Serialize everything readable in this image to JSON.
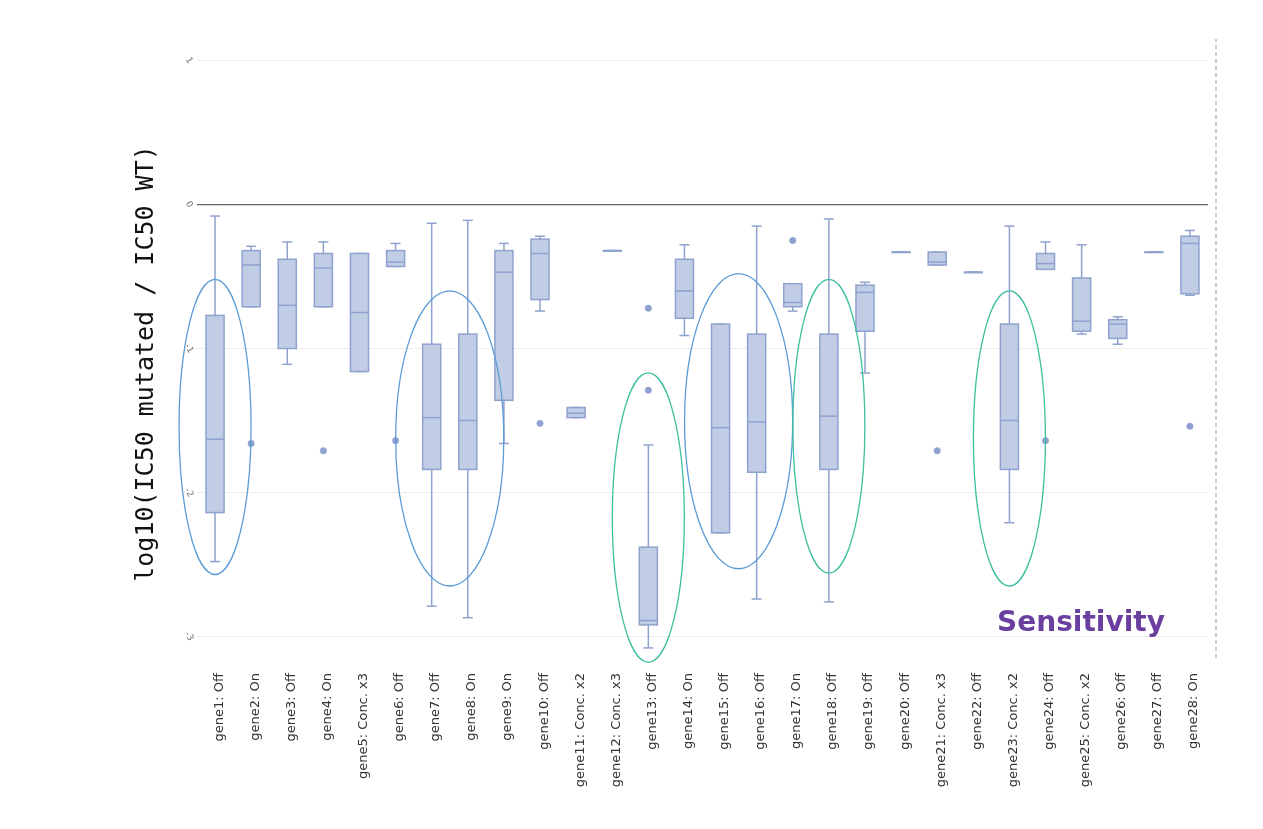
{
  "chart_data": {
    "type": "box",
    "ylabel": "log10(IC50 mutated / IC50 WT)",
    "categories": [
      "gene1: Off",
      "gene2: On",
      "gene3: Off",
      "gene4: On",
      "gene5: Conc. x3",
      "gene6: Off",
      "gene7: Off",
      "gene8: On",
      "gene9: On",
      "gene10: Off",
      "gene11: Conc. x2",
      "gene12: Conc. x3",
      "gene13: Off",
      "gene14: On",
      "gene15: Off",
      "gene16: Off",
      "gene17: On",
      "gene18: Off",
      "gene19: Off",
      "gene20: Off",
      "gene21: Conc. x3",
      "gene22: Off",
      "gene23: Conc. x2",
      "gene24: Off",
      "gene25: Conc. x2",
      "gene26: Off",
      "gene27: Off",
      "gene28: On"
    ],
    "color": "#8fa2cf",
    "boxes": [
      {
        "low": -2.48,
        "q1": -2.14,
        "median": -1.63,
        "q3": -0.77,
        "high": -0.08
      },
      {
        "low": -0.71,
        "q1": -0.71,
        "median": -0.42,
        "q3": -0.32,
        "high": -0.29,
        "outliers": [
          -1.66
        ]
      },
      {
        "low": -1.11,
        "q1": -1.0,
        "median": -0.7,
        "q3": -0.38,
        "high": -0.26
      },
      {
        "low": -0.71,
        "q1": -0.71,
        "median": -0.44,
        "q3": -0.34,
        "high": -0.26,
        "outliers": [
          -1.71
        ]
      },
      {
        "low": -1.16,
        "q1": -1.16,
        "median": -0.75,
        "q3": -0.34,
        "high": -0.34
      },
      {
        "low": -0.43,
        "q1": -0.43,
        "median": -0.4,
        "q3": -0.32,
        "high": -0.27,
        "outliers": [
          -1.64
        ]
      },
      {
        "low": -2.79,
        "q1": -1.84,
        "median": -1.48,
        "q3": -0.97,
        "high": -0.13
      },
      {
        "low": -2.87,
        "q1": -1.84,
        "median": -1.5,
        "q3": -0.9,
        "high": -0.11
      },
      {
        "low": -1.66,
        "q1": -1.36,
        "median": -0.47,
        "q3": -0.32,
        "high": -0.27
      },
      {
        "low": -0.74,
        "q1": -0.66,
        "median": -0.34,
        "q3": -0.24,
        "high": -0.22,
        "outliers": [
          -1.52
        ]
      },
      {
        "low": -1.48,
        "q1": -1.48,
        "median": -1.45,
        "q3": -1.41,
        "high": -1.41
      },
      {
        "low": -0.32,
        "q1": -0.32,
        "median": -0.32,
        "q3": -0.32,
        "high": -0.32
      },
      {
        "low": -3.08,
        "q1": -2.92,
        "median": -2.89,
        "q3": -2.38,
        "high": -1.67,
        "outliers": [
          -0.72,
          -1.29
        ]
      },
      {
        "low": -0.91,
        "q1": -0.79,
        "median": -0.6,
        "q3": -0.38,
        "high": -0.28
      },
      {
        "low": -2.28,
        "q1": -2.28,
        "median": -1.55,
        "q3": -0.83,
        "high": -0.83
      },
      {
        "low": -2.74,
        "q1": -1.86,
        "median": -1.51,
        "q3": -0.9,
        "high": -0.15
      },
      {
        "low": -0.74,
        "q1": -0.71,
        "median": -0.68,
        "q3": -0.55,
        "high": -0.55,
        "outliers": [
          -0.25
        ]
      },
      {
        "low": -2.76,
        "q1": -1.84,
        "median": -1.47,
        "q3": -0.9,
        "high": -0.1
      },
      {
        "low": -1.17,
        "q1": -0.88,
        "median": -0.61,
        "q3": -0.56,
        "high": -0.54
      },
      {
        "low": -0.33,
        "q1": -0.33,
        "median": -0.33,
        "q3": -0.33,
        "high": -0.33
      },
      {
        "low": -0.42,
        "q1": -0.42,
        "median": -0.4,
        "q3": -0.33,
        "high": -0.33,
        "outliers": [
          -1.71
        ]
      },
      {
        "low": -0.47,
        "q1": -0.47,
        "median": -0.47,
        "q3": -0.47,
        "high": -0.47
      },
      {
        "low": -2.21,
        "q1": -1.84,
        "median": -1.5,
        "q3": -0.83,
        "high": -0.15
      },
      {
        "low": -0.45,
        "q1": -0.45,
        "median": -0.41,
        "q3": -0.34,
        "high": -0.26,
        "outliers": [
          -1.64
        ]
      },
      {
        "low": -0.9,
        "q1": -0.88,
        "median": -0.81,
        "q3": -0.51,
        "high": -0.28
      },
      {
        "low": -0.97,
        "q1": -0.93,
        "median": -0.83,
        "q3": -0.8,
        "high": -0.78
      },
      {
        "low": -0.33,
        "q1": -0.33,
        "median": -0.33,
        "q3": -0.33,
        "high": -0.33
      },
      {
        "low": -0.63,
        "q1": -0.62,
        "median": -0.27,
        "q3": -0.22,
        "high": -0.18,
        "outliers": [
          -1.54
        ]
      }
    ],
    "ylim": [
      -3.15,
      1.15
    ],
    "yticks": [
      1,
      0,
      -1,
      -2,
      -3
    ],
    "grid": "y",
    "ref_lines": [
      {
        "axis": "y",
        "value": 0,
        "color": "#666666"
      }
    ],
    "annotations": [
      "Sensitivity"
    ]
  }
}
